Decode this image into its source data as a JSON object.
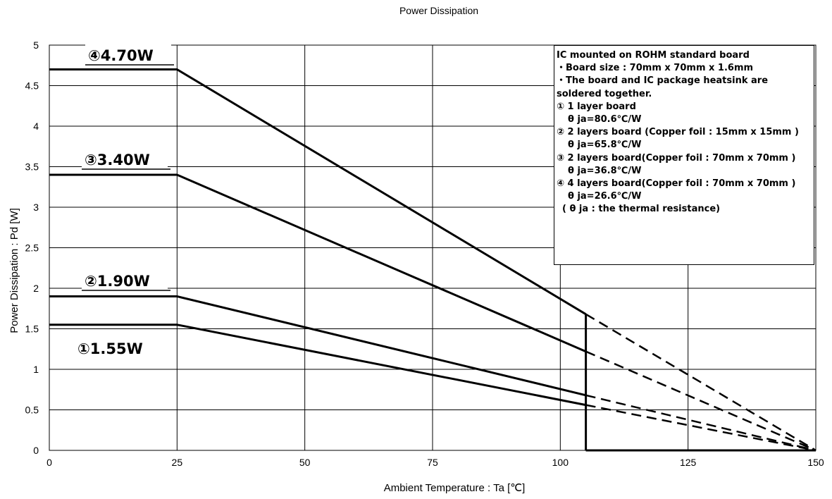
{
  "chart_data": {
    "type": "line",
    "title": "Power Dissipation",
    "xlabel": "Ambient Temperature : Ta [℃]",
    "ylabel": "Power Dissipation : Pd [W]",
    "xlim": [
      0,
      150
    ],
    "ylim": [
      0,
      5
    ],
    "x_ticks": [
      0,
      25,
      50,
      75,
      100,
      125,
      150
    ],
    "y_ticks": [
      0,
      0.5,
      1,
      1.5,
      2,
      2.5,
      3,
      3.5,
      4,
      4.5,
      5
    ],
    "x_tick_labels": [
      "0",
      "25",
      "50",
      "75",
      "100",
      "125",
      "150"
    ],
    "y_tick_labels": [
      "0",
      "0.5",
      "1",
      "1.5",
      "2",
      "2.5",
      "3",
      "3.5",
      "4",
      "4.5",
      "5"
    ],
    "grid": true,
    "cutoff": {
      "x": 105,
      "y_top": 1.68
    },
    "series": [
      {
        "label": "①1.55W",
        "solid": [
          [
            0,
            1.55
          ],
          [
            25,
            1.55
          ],
          [
            105,
            0.56
          ]
        ],
        "dashed": [
          [
            105,
            0.56
          ],
          [
            150,
            0
          ]
        ]
      },
      {
        "label": "②1.90W",
        "solid": [
          [
            0,
            1.9
          ],
          [
            25,
            1.9
          ],
          [
            105,
            0.68
          ]
        ],
        "dashed": [
          [
            105,
            0.68
          ],
          [
            150,
            0
          ]
        ]
      },
      {
        "label": "③3.40W",
        "solid": [
          [
            0,
            3.4
          ],
          [
            25,
            3.4
          ],
          [
            105,
            1.22
          ]
        ],
        "dashed": [
          [
            105,
            1.22
          ],
          [
            150,
            0
          ]
        ]
      },
      {
        "label": "④4.70W",
        "solid": [
          [
            0,
            4.7
          ],
          [
            25,
            4.7
          ],
          [
            105,
            1.68
          ]
        ],
        "dashed": [
          [
            105,
            1.68
          ],
          [
            150,
            0
          ]
        ]
      }
    ],
    "legend": {
      "lines": [
        "IC mounted on ROHM standard board",
        "・Board size : 70mm x 70mm x 1.6mm",
        "・The board and IC package heatsink are",
        "  soldered together.",
        "① 1 layer board",
        "θ ja=80.6℃/W",
        "② 2 layers board (Copper foil : 15mm x 15mm )",
        "θ ja=65.8℃/W",
        "③ 2 layers board(Copper foil : 70mm x 70mm )",
        "θ ja=36.8℃/W",
        "④ 4 layers board(Copper foil : 70mm x 70mm )",
        "θ ja=26.6℃/W",
        "( θ ja : the thermal resistance)"
      ]
    }
  }
}
